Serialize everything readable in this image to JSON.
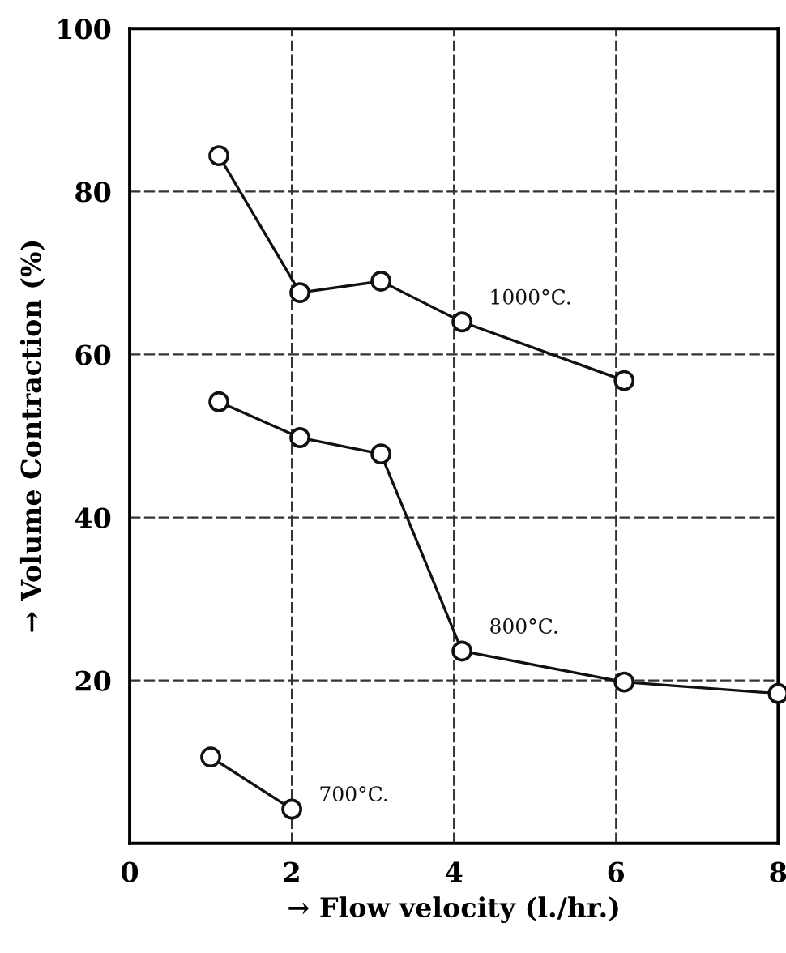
{
  "chart_data": {
    "type": "line",
    "xlabel": "→ Flow velocity (l./hr.)",
    "ylabel": "→ Volume Contraction (%)",
    "xlim": [
      0,
      8
    ],
    "ylim": [
      0,
      100
    ],
    "xticks": [
      0,
      2,
      4,
      6,
      8
    ],
    "yticks": [
      20,
      40,
      60,
      80,
      100
    ],
    "grid": true,
    "marker": "circle",
    "line_style": "solid",
    "legend": false,
    "series": [
      {
        "name": "1000°C.",
        "color": "#111111",
        "x": [
          1.1,
          2.1,
          3.1,
          4.1,
          6.1
        ],
        "values": [
          84.4,
          67.6,
          69,
          64,
          56.8
        ]
      },
      {
        "name": "800°C.",
        "color": "#111111",
        "x": [
          1.1,
          2.1,
          3.1,
          4.1,
          6.1,
          8.0
        ],
        "values": [
          54.2,
          49.8,
          47.8,
          23.6,
          19.8,
          18.4
        ]
      },
      {
        "name": "700°C.",
        "color": "#111111",
        "x": [
          1.0,
          2.0
        ],
        "values": [
          10.6,
          4.2
        ]
      }
    ]
  }
}
